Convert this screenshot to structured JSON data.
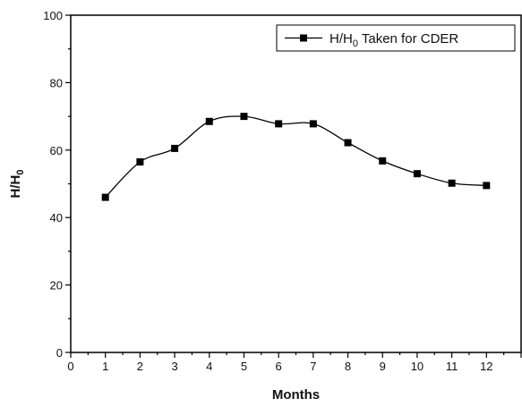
{
  "chart_data": {
    "type": "line",
    "xlabel": "Months",
    "ylabel": "H/H0",
    "ylabel_main": "H/H",
    "ylabel_sub": "0",
    "xlim": [
      0,
      13
    ],
    "ylim": [
      0,
      100
    ],
    "x_ticks": [
      0,
      1,
      2,
      3,
      4,
      5,
      6,
      7,
      8,
      9,
      10,
      11,
      12
    ],
    "y_ticks": [
      0,
      20,
      40,
      60,
      80,
      100
    ],
    "grid": false,
    "legend_position": "top-right",
    "series": [
      {
        "name": "H/H0 Taken for CDER",
        "name_parts": {
          "pre": "H/H",
          "sub": "0",
          "post": " Taken for CDER"
        },
        "marker": "square",
        "color": "#000000",
        "smooth": true,
        "x": [
          1,
          2,
          3,
          4,
          5,
          6,
          7,
          8,
          9,
          10,
          11,
          12
        ],
        "y": [
          46,
          56.5,
          60.5,
          68.5,
          70,
          67.8,
          67.8,
          62.2,
          56.8,
          53,
          50.2,
          49.5
        ]
      }
    ]
  }
}
